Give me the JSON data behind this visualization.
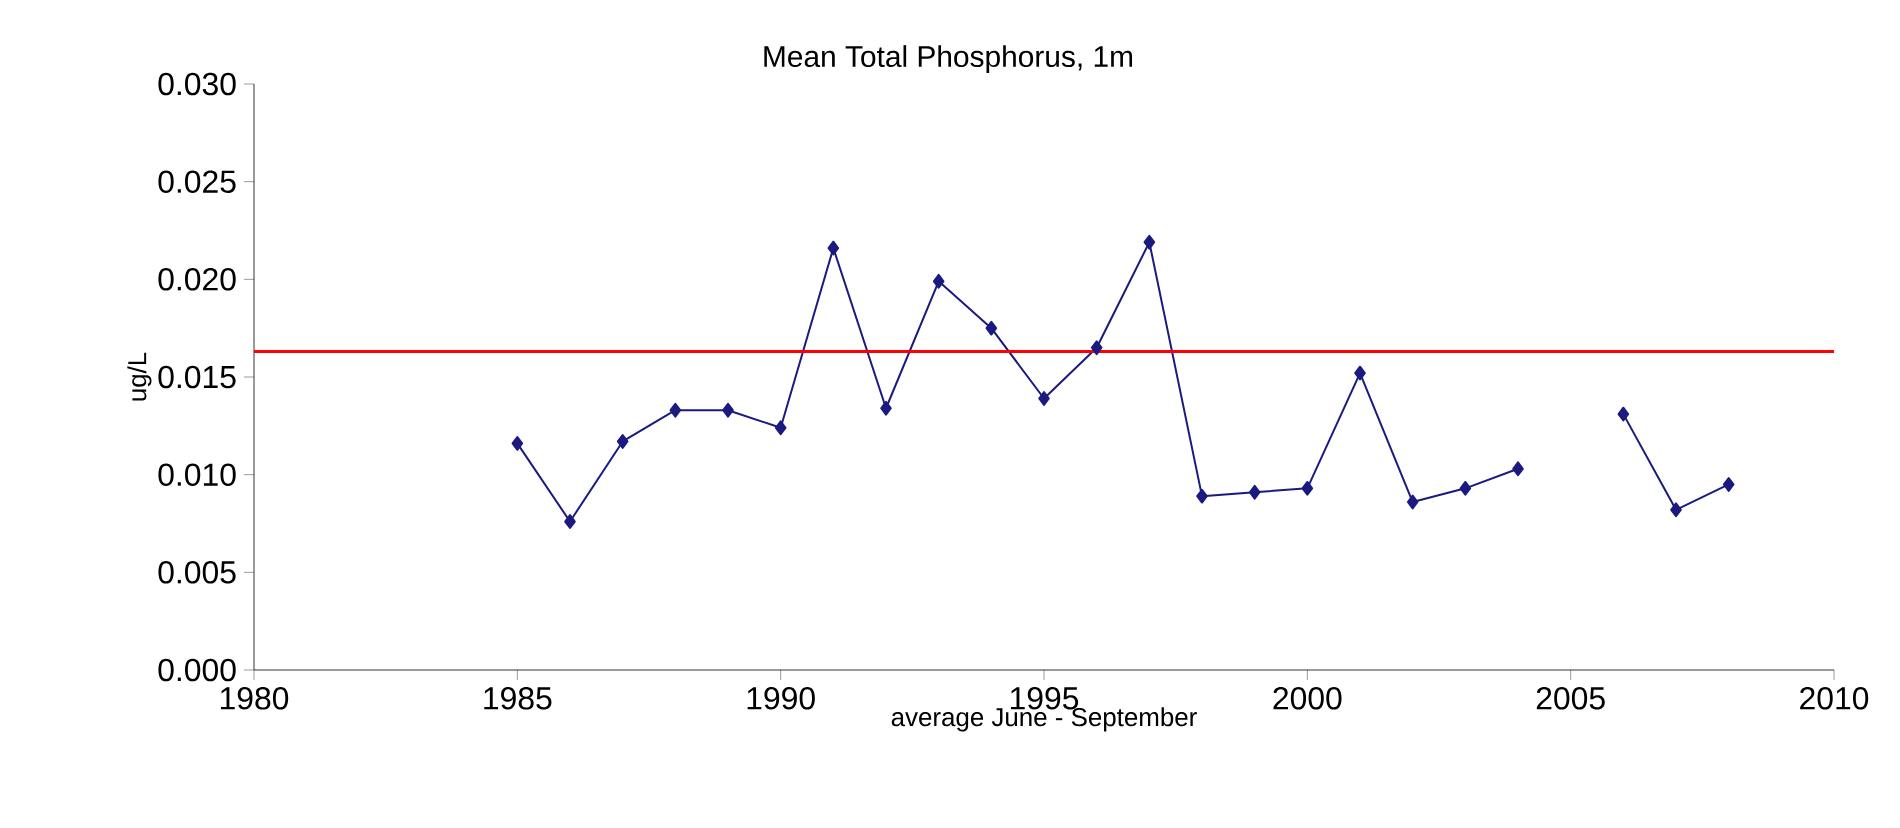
{
  "chart_data": {
    "type": "line",
    "title": "Mean Total Phosphorus, 1m",
    "xlabel": "average June - September",
    "ylabel": "ug/L",
    "x": [
      1985,
      1986,
      1987,
      1988,
      1989,
      1990,
      1991,
      1992,
      1993,
      1994,
      1995,
      1996,
      1997,
      1998,
      1999,
      2000,
      2001,
      2002,
      2003,
      2004,
      2005,
      2006,
      2007,
      2008
    ],
    "series": [
      {
        "color": "#1a1a80",
        "values": [
          0.0116,
          0.0076,
          0.0117,
          0.0133,
          0.0133,
          0.0124,
          0.0216,
          0.0134,
          0.0199,
          0.0175,
          0.0139,
          0.0165,
          0.0219,
          0.0089,
          0.0091,
          0.0093,
          0.0152,
          0.0086,
          0.0093,
          0.0103,
          null,
          0.0131,
          0.0082,
          0.0095
        ]
      }
    ],
    "xlim": [
      1980,
      2010
    ],
    "xticks": [
      1980,
      1985,
      1990,
      1995,
      2000,
      2005,
      2010
    ],
    "ylim": [
      0,
      0.03
    ],
    "yticks": [
      {
        "value": 0,
        "label": "0.000"
      },
      {
        "value": 0.005,
        "label": "0.005"
      },
      {
        "value": 0.01,
        "label": "0.010"
      },
      {
        "value": 0.015,
        "label": "0.015"
      },
      {
        "value": 0.02,
        "label": "0.020"
      },
      {
        "value": 0.025,
        "label": "0.025"
      },
      {
        "value": 0.03,
        "label": "0.030"
      }
    ],
    "ref_lines": [
      {
        "axis": "y",
        "value": 0.0163,
        "color": "#ff0000"
      }
    ],
    "marker": "diamond",
    "line_style": "solid"
  }
}
